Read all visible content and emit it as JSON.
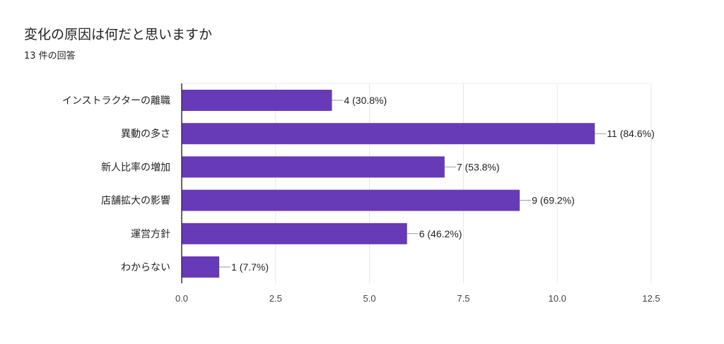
{
  "chart_data": {
    "type": "bar",
    "orientation": "horizontal",
    "title": "変化の原因は何だと思いますか",
    "subtitle": "13 件の回答",
    "categories": [
      "インストラクターの離職",
      "異動の多さ",
      "新人比率の増加",
      "店舗拡大の影響",
      "運営方針",
      "わからない"
    ],
    "values": [
      4,
      11,
      7,
      9,
      6,
      1
    ],
    "data_labels": [
      "4 (30.8%)",
      "11 (84.6%)",
      "7 (53.8%)",
      "9 (69.2%)",
      "6 (46.2%)",
      "1 (7.7%)"
    ],
    "xlim": [
      0,
      12.5
    ],
    "xticks": [
      "0.0",
      "2.5",
      "5.0",
      "7.5",
      "10.0",
      "12.5"
    ],
    "grid": true,
    "legend": "none",
    "bar_color": "#673ab7"
  }
}
